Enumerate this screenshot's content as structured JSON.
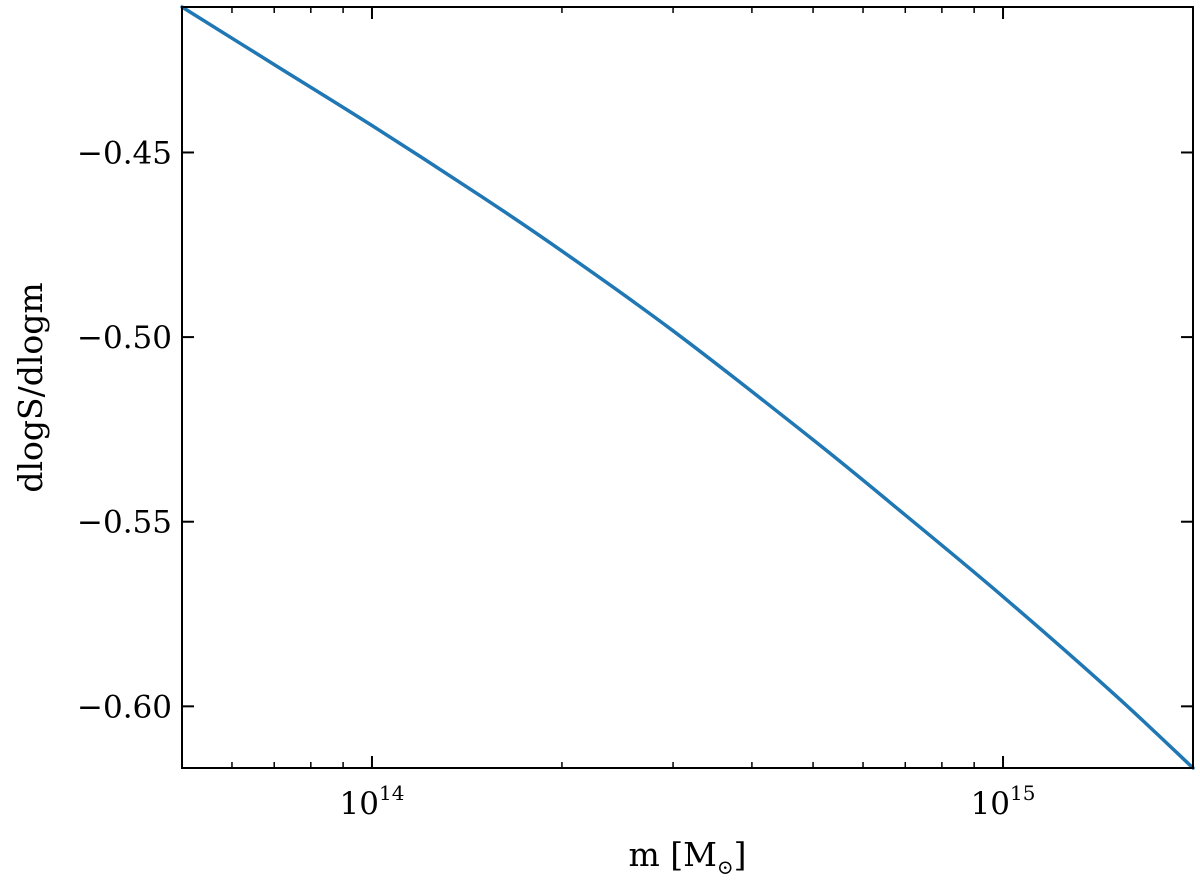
{
  "chart_data": {
    "type": "line",
    "xscale": "log",
    "xlabel": "m [M",
    "xlabel_subscript": "⊙",
    "xlabel_close": "]",
    "ylabel": "dlogS/dlogm",
    "xlim": [
      50000000000000,
      2000000000000000
    ],
    "ylim": [
      -0.6167,
      -0.4106
    ],
    "x_major_ticks": [
      {
        "value": 100000000000000,
        "base": "10",
        "exp": "14"
      },
      {
        "value": 1000000000000000,
        "base": "10",
        "exp": "15"
      }
    ],
    "x_minor_ticks": [
      60000000000000,
      70000000000000,
      80000000000000,
      90000000000000,
      200000000000000,
      300000000000000,
      400000000000000,
      500000000000000,
      600000000000000,
      700000000000000,
      800000000000000,
      900000000000000
    ],
    "y_ticks": [
      {
        "value": -0.45,
        "label": "−0.45"
      },
      {
        "value": -0.5,
        "label": "−0.50"
      },
      {
        "value": -0.55,
        "label": "−0.55"
      },
      {
        "value": -0.6,
        "label": "−0.60"
      }
    ],
    "grid": false,
    "series": [
      {
        "color": "#1f77b4",
        "x": [
          50000000000000,
          70000000000000,
          100000000000000,
          150000000000000,
          200000000000000,
          300000000000000,
          500000000000000,
          700000000000000,
          1000000000000000,
          1500000000000000,
          2000000000000000
        ],
        "y": [
          -0.4106,
          -0.4262,
          -0.4427,
          -0.4622,
          -0.4767,
          -0.4983,
          -0.5278,
          -0.5482,
          -0.5703,
          -0.5967,
          -0.6167
        ]
      }
    ]
  }
}
